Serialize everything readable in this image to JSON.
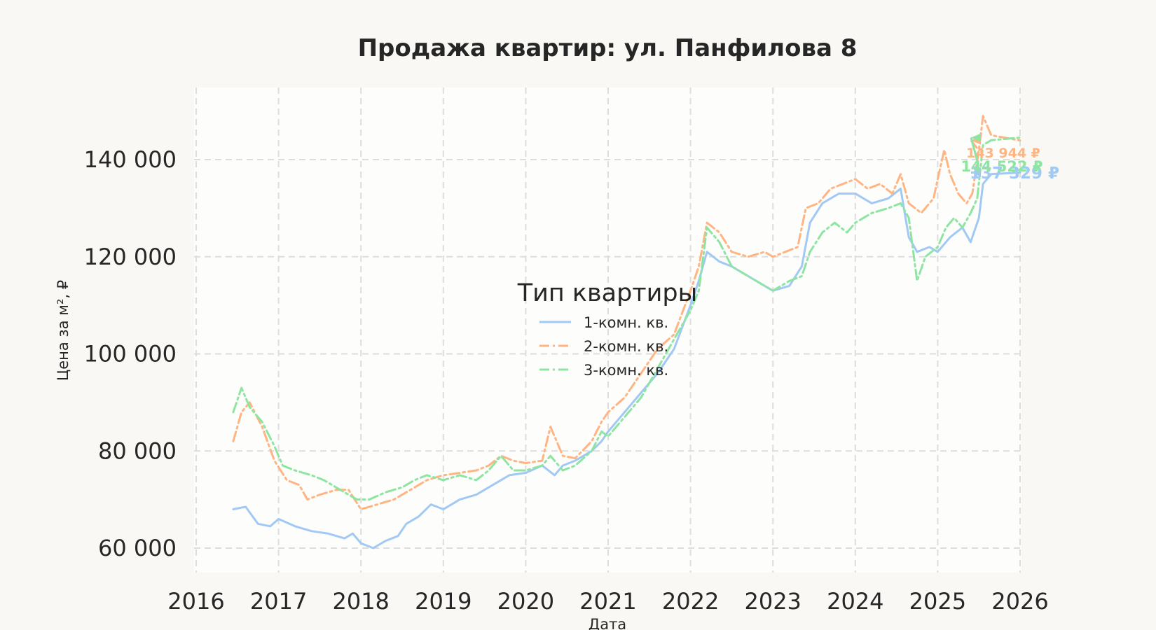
{
  "chart_data": {
    "type": "line",
    "title": "Продажа квартир: ул. Панфилова 8",
    "xlabel": "Дата",
    "ylabel": "Цена за м², ₽",
    "xlim": [
      2016.0,
      2026.0
    ],
    "ylim": [
      55000,
      152000
    ],
    "x_ticks": [
      2016,
      2017,
      2018,
      2019,
      2020,
      2021,
      2022,
      2023,
      2024,
      2025,
      2026
    ],
    "x_tick_labels": [
      "2016",
      "2017",
      "2018",
      "2019",
      "2020",
      "2021",
      "2022",
      "2023",
      "2024",
      "2025",
      "2026"
    ],
    "y_ticks": [
      60000,
      80000,
      100000,
      120000,
      140000
    ],
    "y_tick_labels": [
      "60 000",
      "80 000",
      "100 000",
      "120 000",
      "140 000"
    ],
    "grid": true,
    "grid_style": "dashed",
    "legend": {
      "title": "Тип квартиры",
      "placement": "center"
    },
    "series": [
      {
        "name": "1-комн. кв.",
        "color": "#a1c9f4",
        "dash": "solid",
        "end_label": "137 329 ₽",
        "x": [
          2016.45,
          2016.6,
          2016.75,
          2016.9,
          2017.0,
          2017.2,
          2017.4,
          2017.6,
          2017.8,
          2017.9,
          2018.0,
          2018.15,
          2018.3,
          2018.45,
          2018.55,
          2018.7,
          2018.85,
          2019.0,
          2019.2,
          2019.4,
          2019.6,
          2019.8,
          2020.0,
          2020.2,
          2020.35,
          2020.45,
          2020.6,
          2020.8,
          2020.92,
          2021.0,
          2021.2,
          2021.4,
          2021.6,
          2021.8,
          2022.0,
          2022.1,
          2022.2,
          2022.35,
          2022.5,
          2022.7,
          2022.9,
          2023.0,
          2023.2,
          2023.35,
          2023.45,
          2023.6,
          2023.8,
          2024.0,
          2024.2,
          2024.4,
          2024.55,
          2024.65,
          2024.75,
          2024.9,
          2025.0,
          2025.15,
          2025.3,
          2025.4,
          2025.5,
          2025.55,
          2025.65,
          2026.0
        ],
        "y": [
          68000,
          68500,
          65000,
          64500,
          66000,
          64500,
          63500,
          63000,
          62000,
          63000,
          61000,
          60000,
          61500,
          62500,
          65000,
          66500,
          69000,
          68000,
          70000,
          71000,
          73000,
          75000,
          75500,
          77000,
          75000,
          77000,
          78000,
          80000,
          82000,
          84000,
          88000,
          92000,
          96000,
          101000,
          110000,
          115000,
          121000,
          119000,
          118000,
          116000,
          114000,
          113000,
          114000,
          118000,
          127000,
          131000,
          133000,
          133000,
          131000,
          132000,
          134000,
          124000,
          121000,
          122000,
          121000,
          124000,
          126000,
          123000,
          128000,
          135000,
          137000,
          137329
        ]
      },
      {
        "name": "2-комн. кв.",
        "color": "#ffb482",
        "dash": "dashdot",
        "end_label": "143 944 ₽",
        "x": [
          2016.45,
          2016.55,
          2016.65,
          2016.8,
          2016.95,
          2017.1,
          2017.25,
          2017.35,
          2017.5,
          2017.7,
          2017.85,
          2018.0,
          2018.2,
          2018.4,
          2018.6,
          2018.8,
          2019.0,
          2019.2,
          2019.4,
          2019.55,
          2019.7,
          2019.85,
          2020.0,
          2020.2,
          2020.3,
          2020.45,
          2020.6,
          2020.8,
          2020.92,
          2021.0,
          2021.2,
          2021.4,
          2021.6,
          2021.8,
          2022.0,
          2022.1,
          2022.2,
          2022.35,
          2022.5,
          2022.7,
          2022.9,
          2023.0,
          2023.15,
          2023.3,
          2023.4,
          2023.55,
          2023.7,
          2023.85,
          2024.0,
          2024.15,
          2024.3,
          2024.45,
          2024.55,
          2024.65,
          2024.8,
          2024.95,
          2025.0,
          2025.08,
          2025.15,
          2025.25,
          2025.35,
          2025.42,
          2025.5,
          2025.55,
          2025.65,
          2026.0
        ],
        "y": [
          82000,
          88000,
          90000,
          85000,
          78000,
          74000,
          73000,
          70000,
          71000,
          72000,
          72000,
          68000,
          69000,
          70000,
          72000,
          74000,
          75000,
          75500,
          76000,
          77000,
          79000,
          78000,
          77500,
          78000,
          85000,
          79000,
          78500,
          82000,
          86000,
          88000,
          91000,
          96000,
          101000,
          104000,
          113000,
          118000,
          127000,
          125000,
          121000,
          120000,
          121000,
          120000,
          121000,
          122000,
          130000,
          131000,
          134000,
          135000,
          136000,
          134000,
          135000,
          133000,
          137000,
          131000,
          129000,
          132000,
          136000,
          142000,
          137000,
          133000,
          131000,
          133000,
          142000,
          149000,
          145000,
          143944
        ]
      },
      {
        "name": "3-комн. кв.",
        "color": "#8de5a1",
        "dash": "dashdot",
        "end_label": "144 522 ₽",
        "x": [
          2016.45,
          2016.55,
          2016.65,
          2016.8,
          2016.95,
          2017.05,
          2017.2,
          2017.4,
          2017.55,
          2017.75,
          2017.95,
          2018.1,
          2018.3,
          2018.5,
          2018.65,
          2018.8,
          2019.0,
          2019.2,
          2019.4,
          2019.55,
          2019.7,
          2019.85,
          2020.0,
          2020.2,
          2020.3,
          2020.45,
          2020.6,
          2020.8,
          2020.92,
          2021.0,
          2021.2,
          2021.4,
          2021.6,
          2021.8,
          2022.0,
          2022.1,
          2022.2,
          2022.35,
          2022.5,
          2022.7,
          2022.9,
          2023.0,
          2023.2,
          2023.35,
          2023.45,
          2023.6,
          2023.75,
          2023.9,
          2024.0,
          2024.2,
          2024.4,
          2024.55,
          2024.65,
          2024.75,
          2024.85,
          2025.0,
          2025.1,
          2025.2,
          2025.3,
          2025.4,
          2025.48,
          2025.55,
          2025.65,
          2026.0
        ],
        "y": [
          88000,
          93000,
          89000,
          86000,
          81000,
          77000,
          76000,
          75000,
          74000,
          72000,
          70000,
          70000,
          71500,
          72500,
          74000,
          75000,
          74000,
          75000,
          74000,
          76000,
          79000,
          76000,
          76000,
          77000,
          79000,
          76000,
          77000,
          80000,
          84000,
          83000,
          87000,
          91000,
          97000,
          103000,
          109000,
          113000,
          126000,
          123000,
          118000,
          116000,
          114000,
          113000,
          115000,
          116000,
          121000,
          125000,
          127000,
          125000,
          127000,
          129000,
          130000,
          131000,
          128000,
          115000,
          120000,
          122000,
          126000,
          128000,
          126000,
          129000,
          132000,
          143000,
          144000,
          144522
        ]
      }
    ]
  }
}
